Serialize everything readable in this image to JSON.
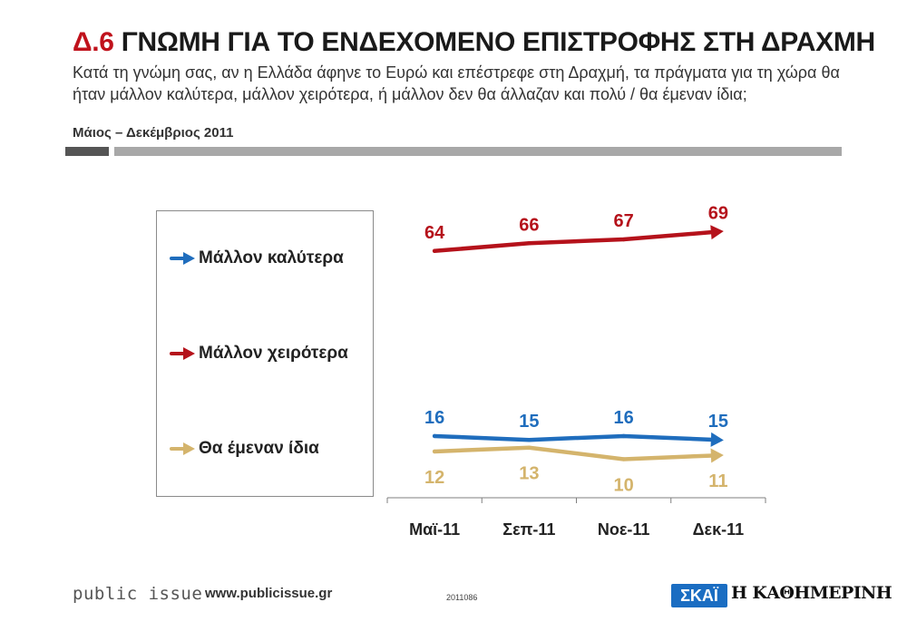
{
  "header": {
    "title_number": "Δ.6",
    "title_text": "ΓΝΩΜΗ ΓΙΑ ΤΟ ΕΝΔΕΧΟΜΕΝΟ ΕΠΙΣΤΡΟΦΗΣ ΣΤΗ ΔΡΑΧΜΗ",
    "question": "Κατά τη γνώμη σας, αν η Ελλάδα άφηνε το Ευρώ και επέστρεφε στη Δραχμή, τα πράγματα για τη χώρα θα ήταν μάλλον καλύτερα, μάλλον χειρότερα, ή μάλλον δεν θα άλλαζαν και πολύ / θα έμεναν ίδια;",
    "period": "Μάιος – Δεκέμβριος 2011"
  },
  "chart_data": {
    "type": "line",
    "title": "ΓΝΩΜΗ ΓΙΑ ΤΟ ΕΝΔΕΧΟΜΕΝΟ ΕΠΙΣΤΡΟΦΗΣ ΣΤΗ ΔΡΑΧΜΗ",
    "xlabel": "",
    "ylabel": "",
    "categories": [
      "Μαϊ-11",
      "Σεπ-11",
      "Νοε-11",
      "Δεκ-11"
    ],
    "ylim": [
      0,
      75
    ],
    "grid": false,
    "legend_position": "left",
    "series": [
      {
        "name": "Μάλλον καλύτερα",
        "color": "#1f6dbd",
        "values": [
          16,
          15,
          16,
          15
        ],
        "label_position": "above"
      },
      {
        "name": "Μάλλον χειρότερα",
        "color": "#b5121b",
        "values": [
          64,
          66,
          67,
          69
        ],
        "label_position": "above"
      },
      {
        "name": "Θα έμεναν ίδια",
        "color": "#d4b46c",
        "values": [
          12,
          13,
          10,
          11
        ],
        "label_position": "below"
      }
    ]
  },
  "footer": {
    "brand": "public issue",
    "url": "www.publicissue.gr",
    "code": "2011086",
    "skai": "ΣΚΑΪ",
    "kathimerini": "Η ΚΑΘΗΜΕΡΙΝΗ"
  }
}
